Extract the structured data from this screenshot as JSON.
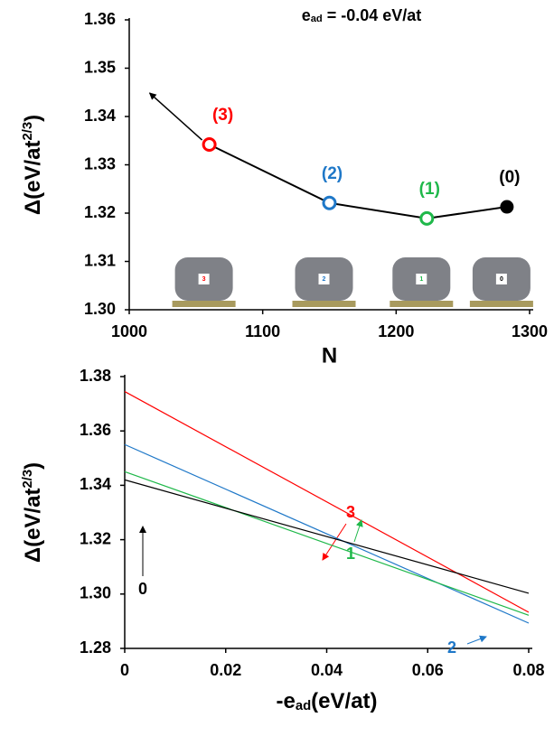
{
  "chart_data": [
    {
      "type": "line",
      "annotation": {
        "main": "e",
        "sub": "ad",
        "rest": " = -0.04 eV/at"
      },
      "xlabel": "N",
      "ylabel": {
        "main": "Δ(eV/at",
        "sup": "2/3",
        "end": ")"
      },
      "x": [
        1060,
        1150,
        1223,
        1283
      ],
      "series": [
        {
          "color": "#000000",
          "values": [
            1.3342,
            1.3221,
            1.3189,
            1.3213
          ],
          "point_colors": [
            "#ff0000",
            "#1f78c8",
            "#1fb84a",
            "#000000"
          ],
          "point_labels": [
            "(3)",
            "(2)",
            "(1)",
            "(0)"
          ],
          "cluster_labels": [
            "3",
            "2",
            "1",
            "0"
          ]
        }
      ],
      "xlim": [
        1000,
        1300
      ],
      "xticks": [
        1000,
        1100,
        1200,
        1300
      ],
      "ylim": [
        1.3,
        1.36
      ],
      "yticks": [
        {
          "value": 1.3,
          "label": "1.30"
        },
        1.31,
        1.32,
        1.33,
        1.34,
        1.35,
        1.36
      ]
    },
    {
      "type": "line",
      "xlabel": {
        "main": "-e",
        "sub": "ad",
        "rest": "(eV/at)"
      },
      "ylabel": {
        "main": "Δ(eV/at",
        "sup": "2/3",
        "end": ")"
      },
      "x": [
        0,
        0.08
      ],
      "series": [
        {
          "name": "3",
          "color": "#ff0000",
          "values": [
            1.3745,
            1.2933
          ]
        },
        {
          "name": "2",
          "color": "#1f78c8",
          "values": [
            1.355,
            1.2893
          ]
        },
        {
          "name": "1",
          "color": "#1fb84a",
          "values": [
            1.345,
            1.2922
          ]
        },
        {
          "name": "0",
          "color": "#000000",
          "values": [
            1.342,
            1.3003
          ]
        }
      ],
      "xlim": [
        0,
        0.08
      ],
      "xticks": [
        0,
        0.02,
        0.04,
        0.06,
        0.08
      ],
      "ylim": [
        1.28,
        1.38
      ],
      "yticks": [
        1.28,
        {
          "value": 1.3,
          "label": "1.30"
        },
        1.32,
        1.34,
        1.36,
        1.38
      ]
    }
  ]
}
